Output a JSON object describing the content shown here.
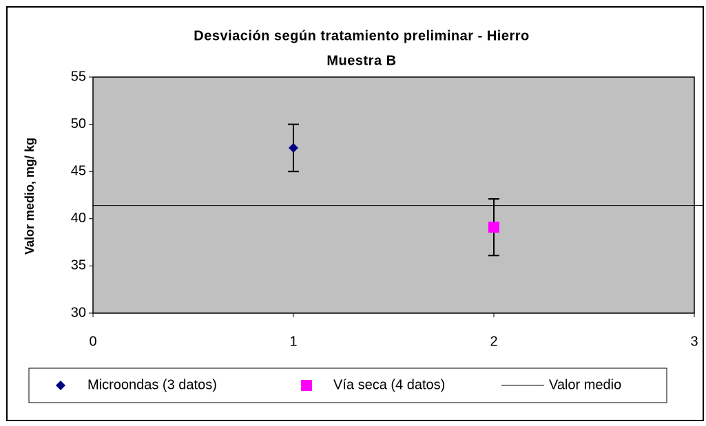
{
  "chart_data": {
    "type": "scatter",
    "title": [
      "Desviación según tratamiento preliminar -  Hierro",
      "Muestra B"
    ],
    "y_label": "Valor medio, mg/ kg",
    "xlim": [
      0,
      3
    ],
    "xticks": [
      0,
      1,
      2,
      3
    ],
    "ylim": [
      30,
      55
    ],
    "yticks": [
      30,
      35,
      40,
      45,
      50,
      55
    ],
    "grid": false,
    "background": "#c0c0c0",
    "legend": "bottom",
    "series": [
      {
        "name": "Microondas (3 datos)",
        "color": "#000080",
        "marker": "diamond",
        "x": [
          1
        ],
        "values": [
          47.5
        ],
        "errors": [
          2.5
        ]
      },
      {
        "name": "Vía seca (4 datos)",
        "color": "#ff00ff",
        "marker": "square",
        "x": [
          2
        ],
        "values": [
          39.1
        ],
        "errors": [
          3.0
        ]
      },
      {
        "name": "Valor medio",
        "color": "#000000",
        "marker": "hline",
        "values": [
          41.4
        ]
      }
    ]
  }
}
